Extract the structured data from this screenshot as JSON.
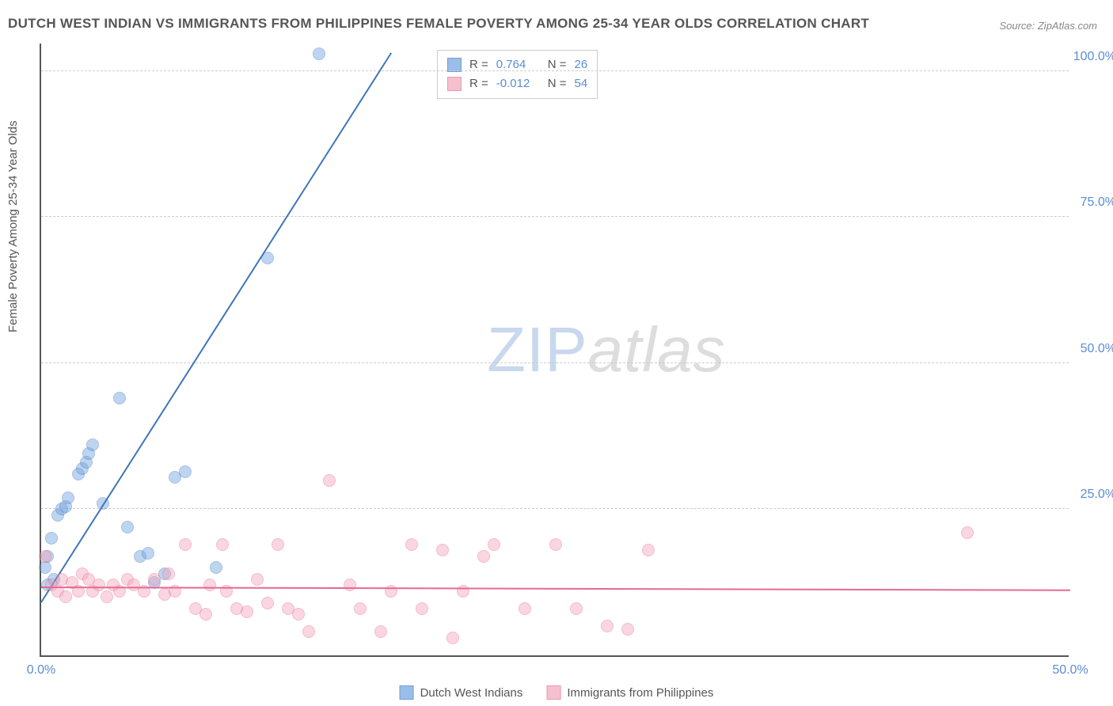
{
  "title": "DUTCH WEST INDIAN VS IMMIGRANTS FROM PHILIPPINES FEMALE POVERTY AMONG 25-34 YEAR OLDS CORRELATION CHART",
  "source": "Source: ZipAtlas.com",
  "y_axis_label": "Female Poverty Among 25-34 Year Olds",
  "watermark_zip": "ZIP",
  "watermark_atlas": "atlas",
  "chart": {
    "type": "scatter",
    "xlim": [
      0,
      50
    ],
    "ylim": [
      0,
      105
    ],
    "x_ticks": [
      {
        "v": 0,
        "label": "0.0%"
      },
      {
        "v": 50,
        "label": "50.0%"
      }
    ],
    "y_ticks": [
      {
        "v": 25,
        "label": "25.0%"
      },
      {
        "v": 50,
        "label": "50.0%"
      },
      {
        "v": 75,
        "label": "75.0%"
      },
      {
        "v": 100,
        "label": "100.0%"
      }
    ],
    "grid_color": "#cccccc",
    "background_color": "#ffffff",
    "axis_color": "#555555",
    "tick_label_color": "#5b8cd6",
    "marker_radius": 8,
    "marker_opacity": 0.45,
    "series": [
      {
        "name": "Dutch West Indians",
        "fill_color": "#6fa3e0",
        "stroke_color": "#3f75b8",
        "trend": {
          "x1": 0,
          "y1": 9,
          "x2": 17,
          "y2": 103,
          "color": "#3f75b8",
          "width": 2
        },
        "r_value": "0.764",
        "n_value": "26",
        "points": [
          [
            0.2,
            15
          ],
          [
            0.3,
            17
          ],
          [
            0.5,
            20
          ],
          [
            0.8,
            24
          ],
          [
            1.0,
            25
          ],
          [
            1.2,
            25.5
          ],
          [
            1.3,
            27
          ],
          [
            1.8,
            31
          ],
          [
            2.0,
            32
          ],
          [
            2.2,
            33
          ],
          [
            2.3,
            34.5
          ],
          [
            2.5,
            36
          ],
          [
            3.0,
            26
          ],
          [
            3.8,
            44
          ],
          [
            4.2,
            22
          ],
          [
            4.8,
            17
          ],
          [
            5.2,
            17.5
          ],
          [
            6.0,
            14
          ],
          [
            6.5,
            30.5
          ],
          [
            7.0,
            31.5
          ],
          [
            8.5,
            15
          ],
          [
            11.0,
            68
          ],
          [
            13.5,
            103
          ],
          [
            0.3,
            12
          ],
          [
            0.6,
            13
          ],
          [
            5.5,
            12.5
          ]
        ]
      },
      {
        "name": "Immigrants from Philippines",
        "fill_color": "#f4a6bc",
        "stroke_color": "#e56a93",
        "trend": {
          "x1": 0,
          "y1": 11.5,
          "x2": 50,
          "y2": 11,
          "color": "#e56a93",
          "width": 2
        },
        "r_value": "-0.012",
        "n_value": "54",
        "points": [
          [
            0.2,
            17
          ],
          [
            0.5,
            12
          ],
          [
            0.8,
            11
          ],
          [
            1.0,
            13
          ],
          [
            1.2,
            10
          ],
          [
            1.5,
            12.5
          ],
          [
            1.8,
            11
          ],
          [
            2.0,
            14
          ],
          [
            2.3,
            13
          ],
          [
            2.5,
            11
          ],
          [
            2.8,
            12
          ],
          [
            3.2,
            10
          ],
          [
            3.5,
            12
          ],
          [
            3.8,
            11
          ],
          [
            4.2,
            13
          ],
          [
            4.5,
            12
          ],
          [
            5.0,
            11
          ],
          [
            5.5,
            13
          ],
          [
            6.0,
            10.5
          ],
          [
            6.2,
            14
          ],
          [
            6.5,
            11
          ],
          [
            7.0,
            19
          ],
          [
            7.5,
            8
          ],
          [
            8.0,
            7
          ],
          [
            8.2,
            12
          ],
          [
            8.8,
            19
          ],
          [
            9.0,
            11
          ],
          [
            9.5,
            8
          ],
          [
            10.0,
            7.5
          ],
          [
            10.5,
            13
          ],
          [
            11.0,
            9
          ],
          [
            11.5,
            19
          ],
          [
            12.0,
            8
          ],
          [
            12.5,
            7
          ],
          [
            13.0,
            4
          ],
          [
            14.0,
            30
          ],
          [
            15.0,
            12
          ],
          [
            15.5,
            8
          ],
          [
            16.5,
            4
          ],
          [
            17.0,
            11
          ],
          [
            18.0,
            19
          ],
          [
            18.5,
            8
          ],
          [
            19.5,
            18
          ],
          [
            20.0,
            3
          ],
          [
            20.5,
            11
          ],
          [
            21.5,
            17
          ],
          [
            22.0,
            19
          ],
          [
            23.5,
            8
          ],
          [
            25.0,
            19
          ],
          [
            26.0,
            8
          ],
          [
            27.5,
            5
          ],
          [
            28.5,
            4.5
          ],
          [
            29.5,
            18
          ],
          [
            45.0,
            21
          ]
        ]
      }
    ]
  },
  "legend_top": {
    "r_label": "R =",
    "n_label": "N ="
  },
  "legend_bottom": {
    "series1_label": "Dutch West Indians",
    "series2_label": "Immigrants from Philippines"
  }
}
